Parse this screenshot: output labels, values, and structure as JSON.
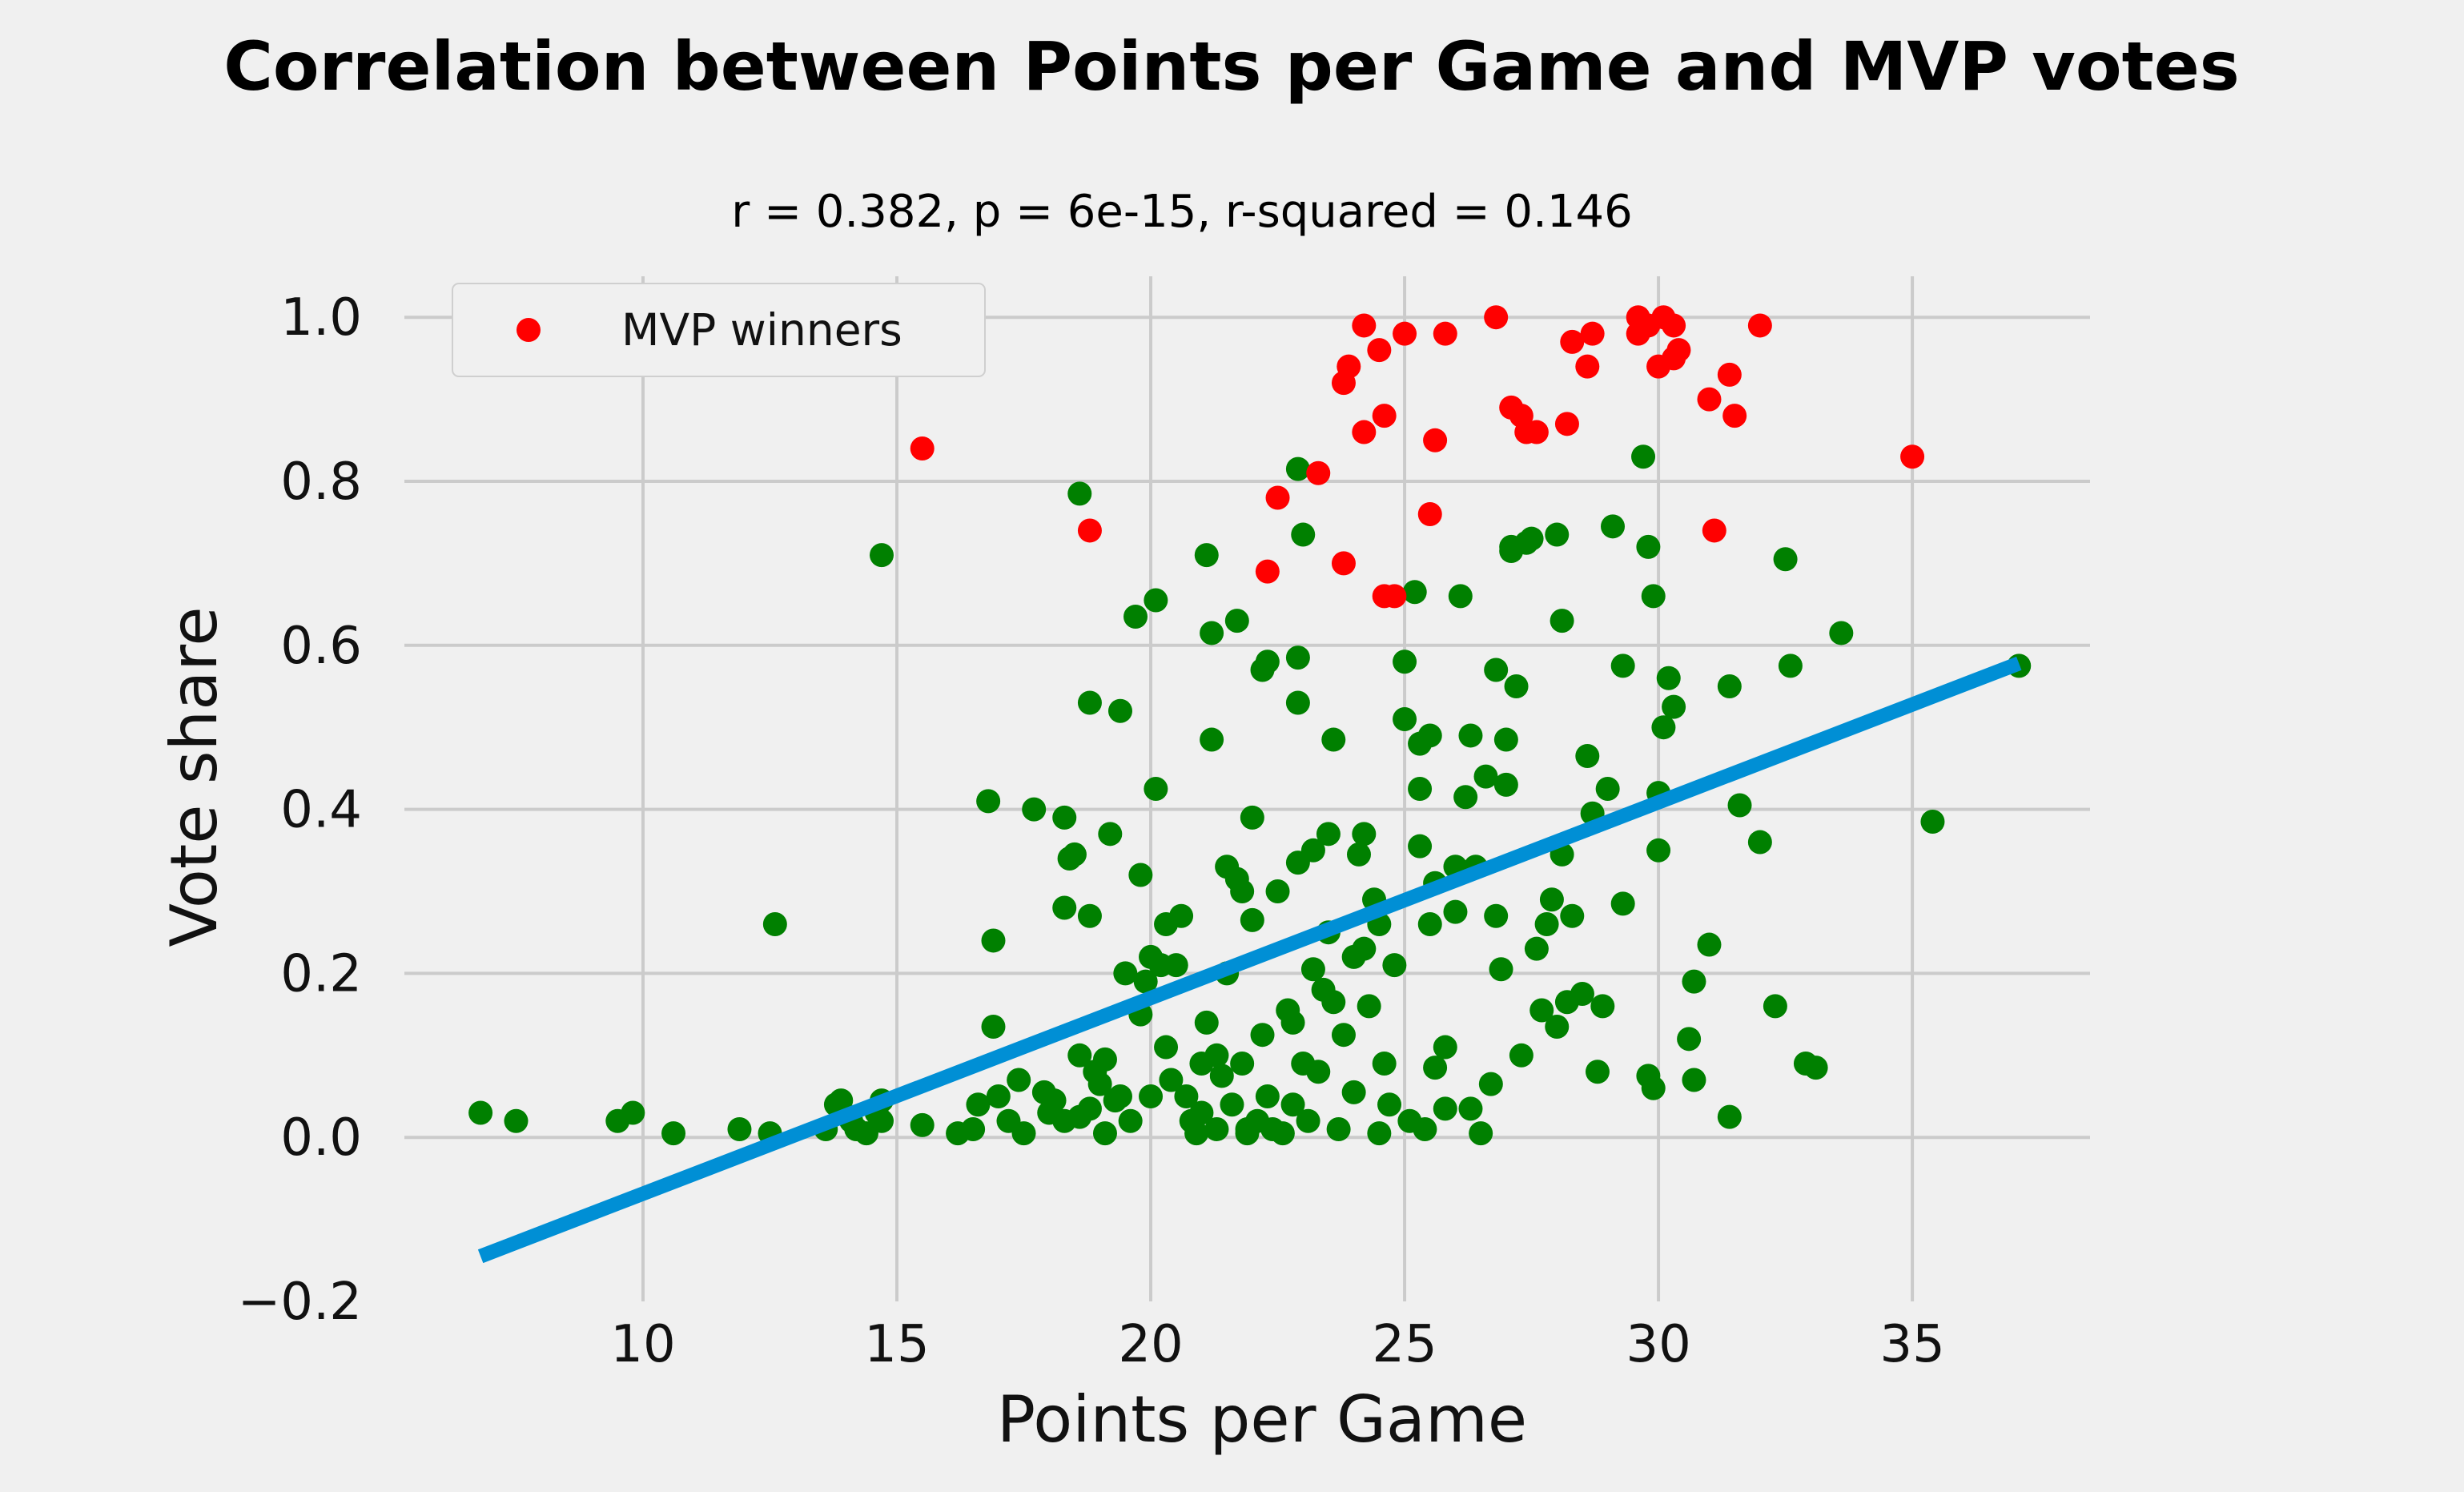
{
  "chart_data": {
    "type": "scatter",
    "title": "Correlation between Points per Game and MVP votes",
    "subtitle": "r = 0.382, p = 6e-15, r-squared = 0.146",
    "xlabel": "Points per Game",
    "ylabel": "Vote share",
    "xlim": [
      5.3,
      38.5
    ],
    "ylim": [
      -0.2,
      1.05
    ],
    "x_ticks": [
      10,
      15,
      20,
      25,
      30,
      35
    ],
    "x_tick_labels": [
      "10",
      "15",
      "20",
      "25",
      "30",
      "35"
    ],
    "y_ticks": [
      -0.2,
      0.0,
      0.2,
      0.4,
      0.6,
      0.8,
      1.0
    ],
    "y_tick_labels": [
      "−0.2",
      "0.0",
      "0.2",
      "0.4",
      "0.6",
      "0.8",
      "1.0"
    ],
    "grid": true,
    "legend_position": "top-left",
    "colors": {
      "background": "#f0f0f0",
      "grid": "#cbcbcb",
      "mvp_winners": "#ff0000",
      "others": "#008000",
      "fit_line": "#008fd5"
    },
    "series": [
      {
        "name": "MVP winners",
        "color": "#ff0000",
        "points": [
          [
            15.5,
            0.84
          ],
          [
            18.8,
            0.74
          ],
          [
            22.3,
            0.69
          ],
          [
            22.5,
            0.78
          ],
          [
            23.3,
            0.81
          ],
          [
            23.8,
            0.7
          ],
          [
            23.8,
            0.92
          ],
          [
            23.9,
            0.94
          ],
          [
            24.2,
            0.86
          ],
          [
            24.2,
            0.99
          ],
          [
            24.5,
            0.96
          ],
          [
            24.6,
            0.66
          ],
          [
            24.6,
            0.88
          ],
          [
            24.8,
            0.66
          ],
          [
            25.0,
            0.98
          ],
          [
            25.5,
            0.76
          ],
          [
            25.6,
            0.85
          ],
          [
            25.8,
            0.98
          ],
          [
            26.8,
            1.0
          ],
          [
            27.1,
            0.89
          ],
          [
            27.3,
            0.88
          ],
          [
            27.4,
            0.86
          ],
          [
            27.6,
            0.86
          ],
          [
            28.2,
            0.87
          ],
          [
            28.3,
            0.97
          ],
          [
            28.6,
            0.94
          ],
          [
            28.7,
            0.98
          ],
          [
            29.6,
            0.98
          ],
          [
            29.6,
            1.0
          ],
          [
            29.8,
            0.99
          ],
          [
            30.0,
            0.94
          ],
          [
            30.1,
            1.0
          ],
          [
            30.3,
            0.99
          ],
          [
            30.3,
            0.95
          ],
          [
            30.4,
            0.96
          ],
          [
            31.0,
            0.9
          ],
          [
            31.1,
            0.74
          ],
          [
            31.4,
            0.93
          ],
          [
            31.5,
            0.88
          ],
          [
            32.0,
            0.99
          ],
          [
            35.0,
            0.83
          ]
        ]
      },
      {
        "color": "#008000",
        "points": [
          [
            6.8,
            0.03
          ],
          [
            7.5,
            0.02
          ],
          [
            9.5,
            0.02
          ],
          [
            9.8,
            0.03
          ],
          [
            10.6,
            0.005
          ],
          [
            11.9,
            0.01
          ],
          [
            12.5,
            0.005
          ],
          [
            12.6,
            0.26
          ],
          [
            13.6,
            0.01
          ],
          [
            13.8,
            0.04
          ],
          [
            13.9,
            0.045
          ],
          [
            14.1,
            0.02
          ],
          [
            14.2,
            0.01
          ],
          [
            14.4,
            0.005
          ],
          [
            14.6,
            0.03
          ],
          [
            14.7,
            0.045
          ],
          [
            14.7,
            0.02
          ],
          [
            14.7,
            0.71
          ],
          [
            15.5,
            0.015
          ],
          [
            16.2,
            0.005
          ],
          [
            16.5,
            0.01
          ],
          [
            16.6,
            0.04
          ],
          [
            16.8,
            0.41
          ],
          [
            16.9,
            0.24
          ],
          [
            16.9,
            0.135
          ],
          [
            17.0,
            0.05
          ],
          [
            17.2,
            0.02
          ],
          [
            17.4,
            0.07
          ],
          [
            17.5,
            0.005
          ],
          [
            17.7,
            0.4
          ],
          [
            17.9,
            0.055
          ],
          [
            18.0,
            0.03
          ],
          [
            18.1,
            0.045
          ],
          [
            18.3,
            0.02
          ],
          [
            18.3,
            0.39
          ],
          [
            18.3,
            0.28
          ],
          [
            18.4,
            0.34
          ],
          [
            18.5,
            0.345
          ],
          [
            18.6,
            0.1
          ],
          [
            18.6,
            0.025
          ],
          [
            18.6,
            0.785
          ],
          [
            18.8,
            0.035
          ],
          [
            18.8,
            0.27
          ],
          [
            18.8,
            0.53
          ],
          [
            18.9,
            0.08
          ],
          [
            19.0,
            0.065
          ],
          [
            19.1,
            0.095
          ],
          [
            19.1,
            0.005
          ],
          [
            19.2,
            0.37
          ],
          [
            19.3,
            0.045
          ],
          [
            19.4,
            0.05
          ],
          [
            19.4,
            0.52
          ],
          [
            19.5,
            0.2
          ],
          [
            19.6,
            0.02
          ],
          [
            19.7,
            0.635
          ],
          [
            19.8,
            0.15
          ],
          [
            19.8,
            0.32
          ],
          [
            19.9,
            0.19
          ],
          [
            20.0,
            0.22
          ],
          [
            20.0,
            0.05
          ],
          [
            20.1,
            0.425
          ],
          [
            20.1,
            0.655
          ],
          [
            20.2,
            0.21
          ],
          [
            20.3,
            0.11
          ],
          [
            20.3,
            0.26
          ],
          [
            20.4,
            0.07
          ],
          [
            20.5,
            0.21
          ],
          [
            20.6,
            0.27
          ],
          [
            20.7,
            0.05
          ],
          [
            20.8,
            0.02
          ],
          [
            20.9,
            0.005
          ],
          [
            21.0,
            0.03
          ],
          [
            21.0,
            0.09
          ],
          [
            21.1,
            0.71
          ],
          [
            21.1,
            0.14
          ],
          [
            21.2,
            0.615
          ],
          [
            21.2,
            0.485
          ],
          [
            21.3,
            0.01
          ],
          [
            21.3,
            0.1
          ],
          [
            21.4,
            0.075
          ],
          [
            21.5,
            0.33
          ],
          [
            21.5,
            0.2
          ],
          [
            21.6,
            0.04
          ],
          [
            21.7,
            0.63
          ],
          [
            21.7,
            0.315
          ],
          [
            21.8,
            0.3
          ],
          [
            21.8,
            0.09
          ],
          [
            21.9,
            0.01
          ],
          [
            21.9,
            0.005
          ],
          [
            22.0,
            0.39
          ],
          [
            22.0,
            0.265
          ],
          [
            22.1,
            0.02
          ],
          [
            22.2,
            0.57
          ],
          [
            22.2,
            0.125
          ],
          [
            22.3,
            0.58
          ],
          [
            22.3,
            0.05
          ],
          [
            22.4,
            0.01
          ],
          [
            22.5,
            0.3
          ],
          [
            22.6,
            0.005
          ],
          [
            22.7,
            0.155
          ],
          [
            22.8,
            0.14
          ],
          [
            22.8,
            0.04
          ],
          [
            22.9,
            0.53
          ],
          [
            22.9,
            0.585
          ],
          [
            22.9,
            0.335
          ],
          [
            22.9,
            0.815
          ],
          [
            23.0,
            0.735
          ],
          [
            23.0,
            0.09
          ],
          [
            23.1,
            0.02
          ],
          [
            23.2,
            0.35
          ],
          [
            23.2,
            0.205
          ],
          [
            23.3,
            0.08
          ],
          [
            23.4,
            0.18
          ],
          [
            23.5,
            0.37
          ],
          [
            23.5,
            0.25
          ],
          [
            23.6,
            0.485
          ],
          [
            23.6,
            0.165
          ],
          [
            23.7,
            0.01
          ],
          [
            23.8,
            0.125
          ],
          [
            24.0,
            0.22
          ],
          [
            24.0,
            0.055
          ],
          [
            24.1,
            0.345
          ],
          [
            24.2,
            0.37
          ],
          [
            24.2,
            0.23
          ],
          [
            24.3,
            0.16
          ],
          [
            24.4,
            0.29
          ],
          [
            24.5,
            0.005
          ],
          [
            24.5,
            0.26
          ],
          [
            24.6,
            0.09
          ],
          [
            24.7,
            0.04
          ],
          [
            24.8,
            0.21
          ],
          [
            25.0,
            0.58
          ],
          [
            25.0,
            0.51
          ],
          [
            25.1,
            0.02
          ],
          [
            25.2,
            0.665
          ],
          [
            25.3,
            0.48
          ],
          [
            25.3,
            0.425
          ],
          [
            25.3,
            0.355
          ],
          [
            25.4,
            0.01
          ],
          [
            25.5,
            0.26
          ],
          [
            25.5,
            0.49
          ],
          [
            25.6,
            0.31
          ],
          [
            25.6,
            0.085
          ],
          [
            25.8,
            0.035
          ],
          [
            25.8,
            0.11
          ],
          [
            26.0,
            0.33
          ],
          [
            26.0,
            0.275
          ],
          [
            26.1,
            0.66
          ],
          [
            26.2,
            0.415
          ],
          [
            26.3,
            0.49
          ],
          [
            26.3,
            0.035
          ],
          [
            26.4,
            0.33
          ],
          [
            26.5,
            0.005
          ],
          [
            26.6,
            0.44
          ],
          [
            26.7,
            0.065
          ],
          [
            26.8,
            0.57
          ],
          [
            26.8,
            0.27
          ],
          [
            26.9,
            0.205
          ],
          [
            27.0,
            0.43
          ],
          [
            27.0,
            0.485
          ],
          [
            27.1,
            0.72
          ],
          [
            27.1,
            0.715
          ],
          [
            27.2,
            0.55
          ],
          [
            27.3,
            0.1
          ],
          [
            27.4,
            0.725
          ],
          [
            27.5,
            0.73
          ],
          [
            27.6,
            0.23
          ],
          [
            27.7,
            0.155
          ],
          [
            27.8,
            0.26
          ],
          [
            27.9,
            0.29
          ],
          [
            28.0,
            0.735
          ],
          [
            28.0,
            0.135
          ],
          [
            28.1,
            0.345
          ],
          [
            28.1,
            0.63
          ],
          [
            28.2,
            0.165
          ],
          [
            28.3,
            0.27
          ],
          [
            28.5,
            0.175
          ],
          [
            28.6,
            0.465
          ],
          [
            28.7,
            0.395
          ],
          [
            28.8,
            0.08
          ],
          [
            28.9,
            0.16
          ],
          [
            29.0,
            0.425
          ],
          [
            29.1,
            0.745
          ],
          [
            29.3,
            0.575
          ],
          [
            29.3,
            0.285
          ],
          [
            29.7,
            0.83
          ],
          [
            29.8,
            0.075
          ],
          [
            29.8,
            0.72
          ],
          [
            29.9,
            0.66
          ],
          [
            29.9,
            0.06
          ],
          [
            30.0,
            0.35
          ],
          [
            30.0,
            0.42
          ],
          [
            30.1,
            0.5
          ],
          [
            30.2,
            0.56
          ],
          [
            30.3,
            0.525
          ],
          [
            30.6,
            0.12
          ],
          [
            30.7,
            0.07
          ],
          [
            30.7,
            0.19
          ],
          [
            31.0,
            0.235
          ],
          [
            31.4,
            0.025
          ],
          [
            31.4,
            0.55
          ],
          [
            31.6,
            0.405
          ],
          [
            32.0,
            0.36
          ],
          [
            32.3,
            0.16
          ],
          [
            32.5,
            0.705
          ],
          [
            32.6,
            0.575
          ],
          [
            32.9,
            0.09
          ],
          [
            33.1,
            0.085
          ],
          [
            33.6,
            0.615
          ],
          [
            35.4,
            0.385
          ],
          [
            37.1,
            0.575
          ]
        ]
      }
    ],
    "fit_line": {
      "x": [
        6.8,
        37.1
      ],
      "y": [
        -0.145,
        0.578
      ]
    },
    "legend": {
      "entries": [
        "MVP winners"
      ]
    }
  }
}
